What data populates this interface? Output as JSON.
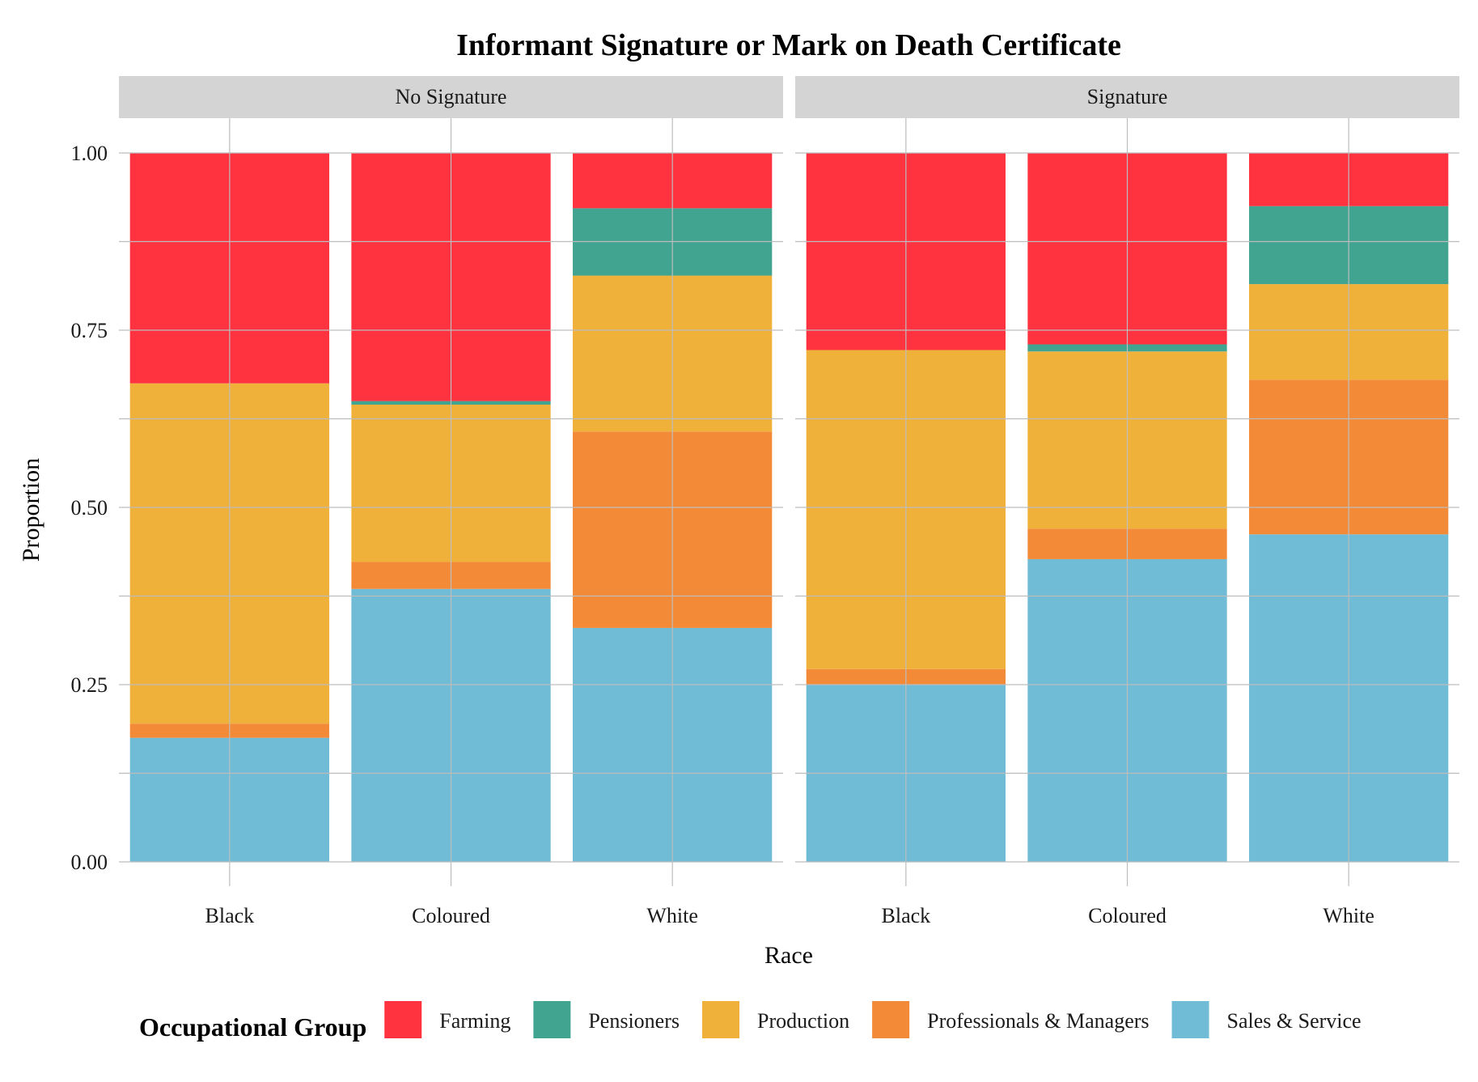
{
  "chart_data": {
    "type": "bar",
    "stacked": true,
    "title": "Informant Signature or Mark on Death Certificate",
    "xlabel": "Race",
    "ylabel": "Proportion",
    "ylim": [
      0,
      1
    ],
    "yticks": [
      "0.00",
      "0.25",
      "0.50",
      "0.75",
      "1.00"
    ],
    "categories": [
      "Black",
      "Coloured",
      "White"
    ],
    "grid": true,
    "legend_position": "bottom",
    "legend_title": "Occupational Group",
    "series": [
      {
        "name": "Farming",
        "color": "#FF3340"
      },
      {
        "name": "Pensioners",
        "color": "#40A490"
      },
      {
        "name": "Production",
        "color": "#EFB13A"
      },
      {
        "name": "Professionals & Managers",
        "color": "#F38A38"
      },
      {
        "name": "Sales & Service",
        "color": "#70BBD6"
      }
    ],
    "panels": [
      {
        "label": "No Signature",
        "values": {
          "Black": {
            "Sales & Service": 0.175,
            "Professionals & Managers": 0.02,
            "Production": 0.48,
            "Pensioners": 0.0,
            "Farming": 0.325
          },
          "Coloured": {
            "Sales & Service": 0.385,
            "Professionals & Managers": 0.038,
            "Production": 0.222,
            "Pensioners": 0.005,
            "Farming": 0.35
          },
          "White": {
            "Sales & Service": 0.33,
            "Professionals & Managers": 0.277,
            "Production": 0.22,
            "Pensioners": 0.095,
            "Farming": 0.078
          }
        }
      },
      {
        "label": "Signature",
        "values": {
          "Black": {
            "Sales & Service": 0.25,
            "Professionals & Managers": 0.022,
            "Production": 0.45,
            "Pensioners": 0.0,
            "Farming": 0.278
          },
          "Coloured": {
            "Sales & Service": 0.427,
            "Professionals & Managers": 0.043,
            "Production": 0.25,
            "Pensioners": 0.01,
            "Farming": 0.27
          },
          "White": {
            "Sales & Service": 0.462,
            "Professionals & Managers": 0.218,
            "Production": 0.135,
            "Pensioners": 0.11,
            "Farming": 0.075
          }
        }
      }
    ]
  }
}
